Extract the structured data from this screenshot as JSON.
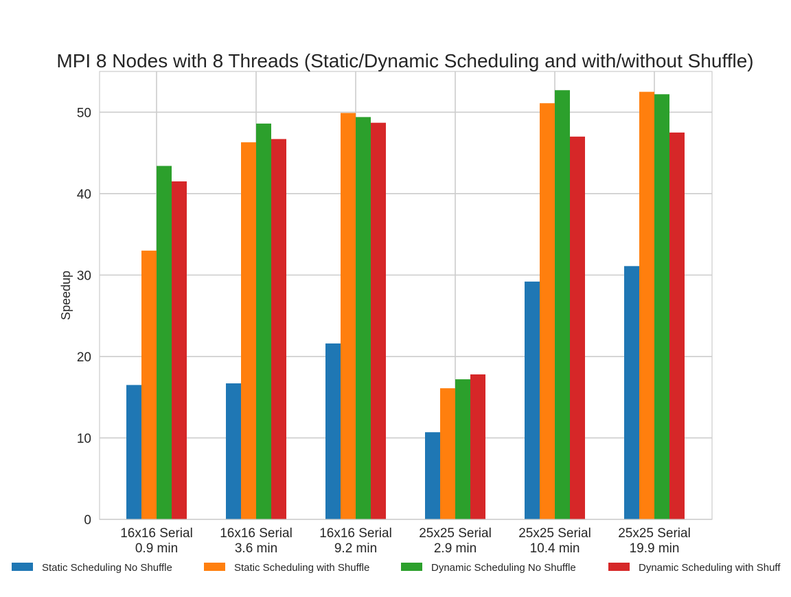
{
  "chart_data": {
    "type": "bar",
    "title": "MPI 8 Nodes with 8 Threads (Static/Dynamic Scheduling and with/without Shuffle)",
    "xlabel": "",
    "ylabel": "Speedup",
    "ylim": [
      0,
      55
    ],
    "yticks": [
      0,
      10,
      20,
      30,
      40,
      50
    ],
    "grid": true,
    "legend_position": "bottom",
    "categories": [
      [
        "16x16 Serial",
        "0.9 min"
      ],
      [
        "16x16 Serial",
        "3.6 min"
      ],
      [
        "16x16 Serial",
        "9.2 min"
      ],
      [
        "25x25 Serial",
        "2.9 min"
      ],
      [
        "25x25 Serial",
        "10.4 min"
      ],
      [
        "25x25 Serial",
        "19.9 min"
      ]
    ],
    "series": [
      {
        "name": "Static Scheduling No Shuffle",
        "color": "#1f77b4",
        "values": [
          16.5,
          16.7,
          21.6,
          10.7,
          29.2,
          31.1
        ]
      },
      {
        "name": "Static Scheduling with Shuffle",
        "color": "#ff7f0e",
        "values": [
          33.0,
          46.3,
          49.9,
          16.1,
          51.1,
          52.5
        ]
      },
      {
        "name": "Dynamic Scheduling No Shuffle",
        "color": "#2ca02c",
        "values": [
          43.4,
          48.6,
          49.4,
          17.2,
          52.7,
          52.2
        ]
      },
      {
        "name": "Dynamic Scheduling with Shuff",
        "color": "#d62728",
        "values": [
          41.5,
          46.7,
          48.7,
          17.8,
          47.0,
          47.5
        ]
      }
    ]
  }
}
